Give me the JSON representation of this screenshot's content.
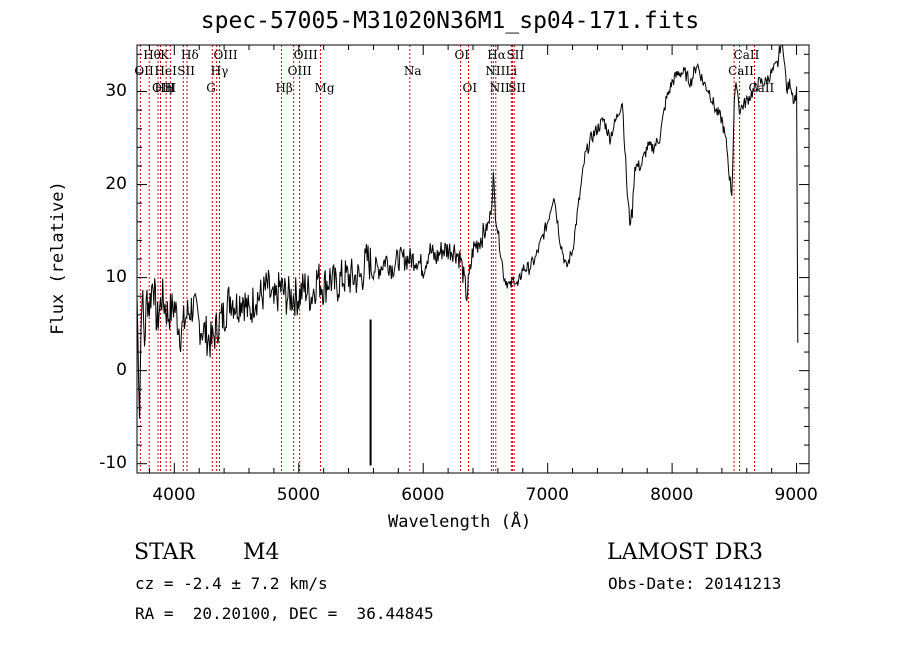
{
  "chart_data": {
    "type": "line",
    "title": "spec-57005-M31020N36M1_sp04-171.fits",
    "xlabel": "Wavelength (Å)",
    "ylabel": "Flux (relative)",
    "xlim": [
      3700,
      9100
    ],
    "ylim": [
      -11,
      35
    ],
    "xticks": [
      4000,
      5000,
      6000,
      7000,
      8000,
      9000
    ],
    "yticks": [
      -10,
      0,
      10,
      20,
      30
    ],
    "series": [
      {
        "name": "flux",
        "x": [
          3700,
          3720,
          3740,
          3760,
          3780,
          3800,
          3830,
          3860,
          3900,
          3950,
          4000,
          4050,
          4100,
          4150,
          4200,
          4250,
          4300,
          4350,
          4400,
          4450,
          4500,
          4550,
          4600,
          4650,
          4700,
          4750,
          4800,
          4850,
          4900,
          4950,
          5000,
          5050,
          5100,
          5150,
          5200,
          5250,
          5300,
          5350,
          5400,
          5450,
          5500,
          5550,
          5600,
          5650,
          5700,
          5750,
          5800,
          5850,
          5900,
          5950,
          6000,
          6050,
          6100,
          6150,
          6200,
          6250,
          6300,
          6350,
          6400,
          6450,
          6500,
          6530,
          6550,
          6563,
          6580,
          6600,
          6620,
          6650,
          6700,
          6730,
          6760,
          6800,
          6850,
          6900,
          6950,
          7000,
          7050,
          7100,
          7150,
          7200,
          7250,
          7300,
          7350,
          7400,
          7450,
          7500,
          7550,
          7600,
          7620,
          7640,
          7660,
          7680,
          7700,
          7750,
          7800,
          7850,
          7900,
          7950,
          8000,
          8050,
          8100,
          8150,
          8200,
          8250,
          8300,
          8350,
          8400,
          8440,
          8460,
          8480,
          8500,
          8520,
          8540,
          8600,
          8650,
          8700,
          8750,
          8800,
          8850,
          8880,
          8900,
          8920,
          8950,
          8980,
          9000,
          9010
        ],
        "y": [
          8,
          -4,
          9,
          3,
          8,
          7,
          10,
          5,
          8,
          6,
          7,
          4,
          6,
          7,
          5,
          4,
          3,
          5,
          6,
          8,
          7,
          8,
          6,
          8,
          8,
          9,
          7,
          9,
          8,
          8,
          8,
          9,
          8,
          10,
          9,
          10,
          9,
          10,
          10,
          10,
          10,
          12,
          11,
          11,
          12,
          11,
          12,
          12,
          12,
          12,
          11,
          13,
          12,
          13,
          13,
          13,
          12,
          8,
          13,
          14,
          15,
          16,
          18,
          21,
          17,
          15,
          13,
          10,
          9,
          10,
          9,
          11,
          11,
          12,
          14,
          16,
          19,
          14,
          11,
          13,
          18,
          23,
          25,
          26,
          27,
          25,
          27,
          29,
          24,
          19,
          16,
          17,
          22,
          22,
          24,
          24,
          25,
          29,
          31,
          32,
          32,
          31,
          33,
          31,
          30,
          28,
          27,
          24,
          21,
          19,
          29,
          31,
          28,
          29,
          30,
          31,
          31,
          32,
          33,
          36,
          34,
          30,
          31,
          29,
          30,
          3
        ]
      }
    ],
    "lines": [
      {
        "label": "Hθ",
        "x": 3798,
        "row": 0
      },
      {
        "label": "OII",
        "x": 3727,
        "row": 1
      },
      {
        "label": "OIII",
        "x": 3869,
        "row": 2
      },
      {
        "label": "Hη",
        "x": 3889,
        "row": 2
      },
      {
        "label": "HeI",
        "x": 3889,
        "row": 1
      },
      {
        "label": "K",
        "x": 3934,
        "row": 0
      },
      {
        "label": "H",
        "x": 3968,
        "row": 2
      },
      {
        "label": "SII",
        "x": 4072,
        "row": 1
      },
      {
        "label": "Hδ",
        "x": 4102,
        "row": 0
      },
      {
        "label": "OIII",
        "x": 4363,
        "row": 0
      },
      {
        "label": "Hγ",
        "x": 4340,
        "row": 1
      },
      {
        "label": "G",
        "x": 4305,
        "row": 2
      },
      {
        "label": "Hβ",
        "x": 4861,
        "row": 2
      },
      {
        "label": "OIII",
        "x": 4959,
        "row": 1
      },
      {
        "label": "OIII",
        "x": 5007,
        "row": 0
      },
      {
        "label": "Mg",
        "x": 5175,
        "row": 2
      },
      {
        "label": "Na",
        "x": 5893,
        "row": 1
      },
      {
        "label": "OI",
        "x": 6300,
        "row": 0
      },
      {
        "label": "OI",
        "x": 6364,
        "row": 2
      },
      {
        "label": "Hα",
        "x": 6563,
        "row": 0
      },
      {
        "label": "NII",
        "x": 6548,
        "row": 1
      },
      {
        "label": "NII",
        "x": 6583,
        "row": 2
      },
      {
        "label": "SII",
        "x": 6717,
        "row": 0
      },
      {
        "label": "Li",
        "x": 6708,
        "row": 1
      },
      {
        "label": "SII",
        "x": 6731,
        "row": 2
      },
      {
        "label": "CaII",
        "x": 8498,
        "row": 1
      },
      {
        "label": "CaII",
        "x": 8542,
        "row": 0
      },
      {
        "label": "CaII",
        "x": 8662,
        "row": 2
      }
    ],
    "spike": {
      "x": 5577,
      "y0": -10.2,
      "y1": 5.5
    }
  },
  "info": {
    "object_class": "STAR",
    "subclass": "M4",
    "cz": "cz = -2.4 ± 7.2 km/s",
    "coords": "RA =  20.20100, DEC =  36.44845",
    "survey": "LAMOST DR3",
    "obs_date": "Obs-Date: 20141213"
  },
  "colors": {
    "line_marker": "#cc0000",
    "spectrum": "#000000"
  }
}
